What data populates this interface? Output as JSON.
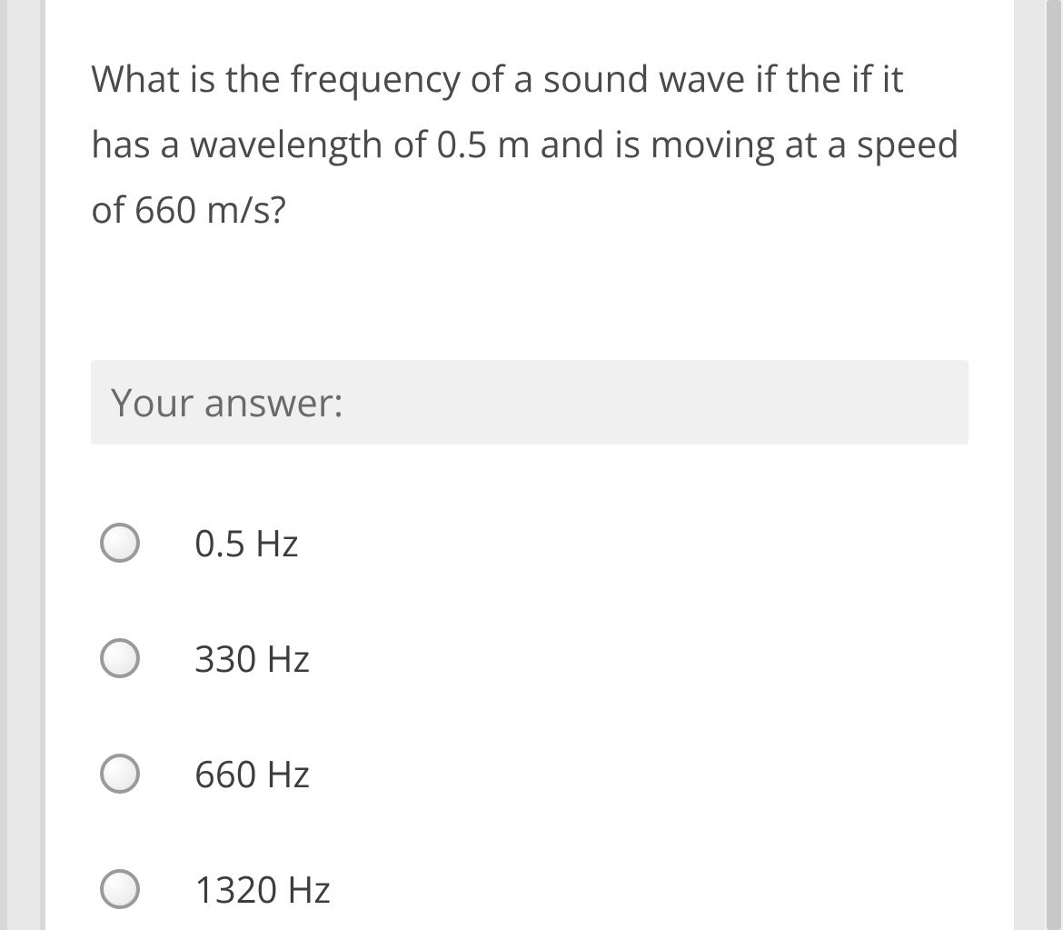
{
  "question": {
    "text": "What is the frequency of a sound wave if the if it has a wavelength of 0.5 m and is moving at a speed of 660 m/s?",
    "answer_prompt": "Your answer:",
    "options": [
      {
        "label": "0.5 Hz"
      },
      {
        "label": "330 Hz"
      },
      {
        "label": "660 Hz"
      },
      {
        "label": "1320 Hz"
      }
    ]
  },
  "colors": {
    "page_bg": "#e8e8e8",
    "card_bg": "#ffffff",
    "card_accent": "#d9d9d9",
    "text_primary": "#4a4a4a",
    "text_secondary": "#6a6a6a",
    "answer_box_bg": "#f0f0f0",
    "radio_border": "#9a9a9a",
    "scrollbar_track": "#f0f0f0",
    "scrollbar_thumb": "#c8c8c8"
  },
  "typography": {
    "question_fontsize": 40,
    "answer_label_fontsize": 42,
    "option_fontsize": 40,
    "font_family": "Segoe UI"
  }
}
